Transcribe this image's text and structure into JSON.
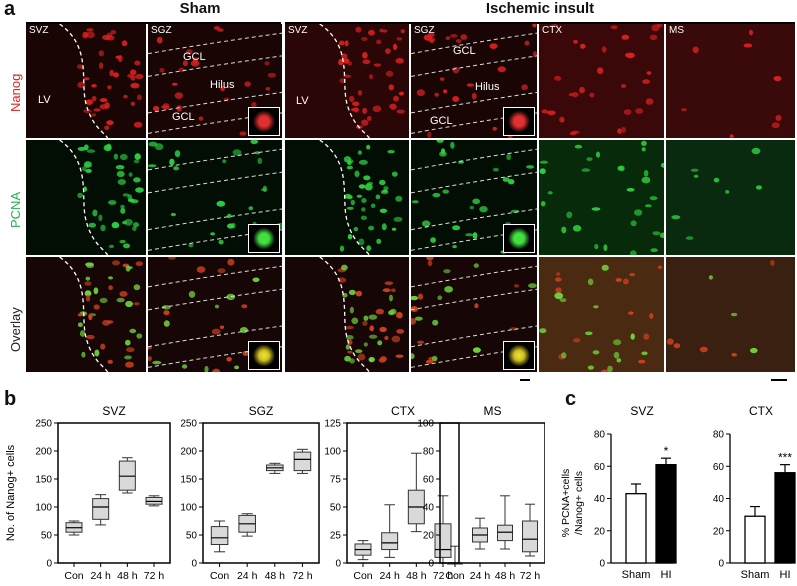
{
  "panel_a": {
    "letter": "a",
    "groups": [
      {
        "title": "Sham"
      },
      {
        "title": "Ischemic insult"
      }
    ],
    "rows": [
      {
        "label": "Nanog",
        "color": "#e02020"
      },
      {
        "label": "PCNA",
        "color": "#22b14c"
      },
      {
        "label": "Overlay",
        "color": "#222222"
      }
    ],
    "columns": [
      {
        "label": "SVZ"
      },
      {
        "label": "SGZ"
      },
      {
        "label": "SVZ"
      },
      {
        "label": "SGZ"
      },
      {
        "label": "CTX"
      },
      {
        "label": "MS"
      }
    ],
    "region_labels": {
      "lv": "LV",
      "gcl": "GCL",
      "hilus": "Hilus"
    }
  },
  "panel_b": {
    "letter": "b",
    "ylabel": "No. of Nanog+ cells",
    "categories": [
      "Con",
      "24 h",
      "48 h",
      "72 h"
    ],
    "charts": [
      {
        "title": "SVZ",
        "ylim": [
          0,
          250
        ],
        "yticks": [
          0,
          50,
          100,
          150,
          200,
          250
        ],
        "boxes": [
          {
            "min": 50,
            "q1": 55,
            "median": 63,
            "q3": 72,
            "max": 75
          },
          {
            "min": 68,
            "q1": 78,
            "median": 100,
            "q3": 115,
            "max": 122
          },
          {
            "min": 125,
            "q1": 130,
            "median": 155,
            "q3": 182,
            "max": 188
          },
          {
            "min": 102,
            "q1": 105,
            "median": 110,
            "q3": 117,
            "max": 120
          }
        ]
      },
      {
        "title": "SGZ",
        "ylim": [
          0,
          250
        ],
        "yticks": [
          0,
          50,
          100,
          150,
          200,
          250
        ],
        "boxes": [
          {
            "min": 20,
            "q1": 33,
            "median": 45,
            "q3": 65,
            "max": 75
          },
          {
            "min": 48,
            "q1": 55,
            "median": 70,
            "q3": 85,
            "max": 88
          },
          {
            "min": 160,
            "q1": 165,
            "median": 170,
            "q3": 175,
            "max": 178
          },
          {
            "min": 160,
            "q1": 165,
            "median": 185,
            "q3": 198,
            "max": 203
          }
        ]
      },
      {
        "title": "CTX",
        "ylim": [
          0,
          125
        ],
        "yticks": [
          0,
          25,
          50,
          75,
          100,
          125
        ],
        "boxes": [
          {
            "min": 3,
            "q1": 7,
            "median": 12,
            "q3": 17,
            "max": 20
          },
          {
            "min": 5,
            "q1": 12,
            "median": 18,
            "q3": 27,
            "max": 52
          },
          {
            "min": 28,
            "q1": 35,
            "median": 50,
            "q3": 65,
            "max": 98
          },
          {
            "min": 0,
            "q1": 5,
            "median": 12,
            "q3": 35,
            "max": 60
          }
        ]
      },
      {
        "title": "MS",
        "ylim": [
          0,
          100
        ],
        "yticks": [
          0,
          20,
          40,
          60,
          80,
          100
        ],
        "boxes": [
          {
            "min": 0,
            "q1": 0,
            "median": 0,
            "q3": 0,
            "max": 12
          },
          {
            "min": 10,
            "q1": 15,
            "median": 20,
            "q3": 25,
            "max": 32
          },
          {
            "min": 10,
            "q1": 16,
            "median": 22,
            "q3": 27,
            "max": 48
          },
          {
            "min": 5,
            "q1": 8,
            "median": 17,
            "q3": 30,
            "max": 42
          }
        ]
      }
    ]
  },
  "panel_c": {
    "letter": "c",
    "ylabel": "% PCNA+cells",
    "ylabel2": "/Nanog+ cells",
    "categories": [
      "Sham",
      "HI"
    ],
    "colors": {
      "sham": "#ffffff",
      "hi": "#000000"
    },
    "charts": [
      {
        "title": "SVZ",
        "ylim": [
          0,
          80
        ],
        "yticks": [
          0,
          20,
          40,
          60,
          80
        ],
        "bars": [
          {
            "value": 43,
            "err": 6,
            "sig": ""
          },
          {
            "value": 61,
            "err": 4,
            "sig": "*"
          }
        ]
      },
      {
        "title": "CTX",
        "ylim": [
          0,
          80
        ],
        "yticks": [
          0,
          20,
          40,
          60,
          80
        ],
        "bars": [
          {
            "value": 29,
            "err": 6,
            "sig": ""
          },
          {
            "value": 56,
            "err": 5,
            "sig": "***"
          }
        ]
      }
    ]
  }
}
